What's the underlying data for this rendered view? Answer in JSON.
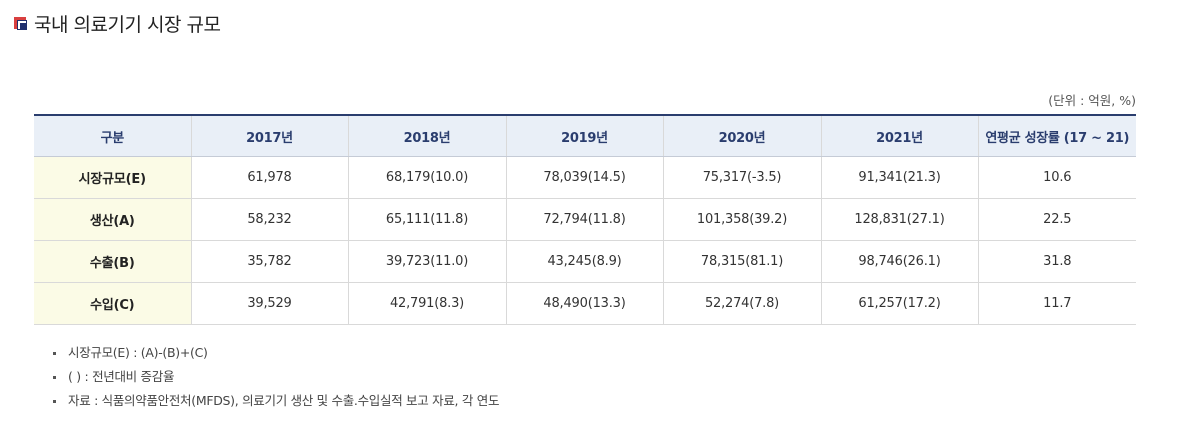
{
  "title": "국내 의료기기 시장 규모",
  "unit": "(단위 : 억원, %)",
  "table": {
    "headers": [
      "구분",
      "2017년",
      "2018년",
      "2019년",
      "2020년",
      "2021년",
      "연평균 성장률 (17 ~ 21)"
    ],
    "rows": [
      {
        "label": "시장규모(E)",
        "cells": [
          "61,978",
          "68,179(10.0)",
          "78,039(14.5)",
          "75,317(-3.5)",
          "91,341(21.3)",
          "10.6"
        ]
      },
      {
        "label": "생산(A)",
        "cells": [
          "58,232",
          "65,111(11.8)",
          "72,794(11.8)",
          "101,358(39.2)",
          "128,831(27.1)",
          "22.5"
        ]
      },
      {
        "label": "수출(B)",
        "cells": [
          "35,782",
          "39,723(11.0)",
          "43,245(8.9)",
          "78,315(81.1)",
          "98,746(26.1)",
          "31.8"
        ]
      },
      {
        "label": "수입(C)",
        "cells": [
          "39,529",
          "42,791(8.3)",
          "48,490(13.3)",
          "52,274(7.8)",
          "61,257(17.2)",
          "11.7"
        ]
      }
    ]
  },
  "notes": [
    "시장규모(E) : (A)-(B)+(C)",
    "( ) : 전년대비 증감율",
    "자료 : 식품의약품안전처(MFDS), 의료기기 생산 및 수출.수입실적 보고 자료, 각 연도"
  ]
}
